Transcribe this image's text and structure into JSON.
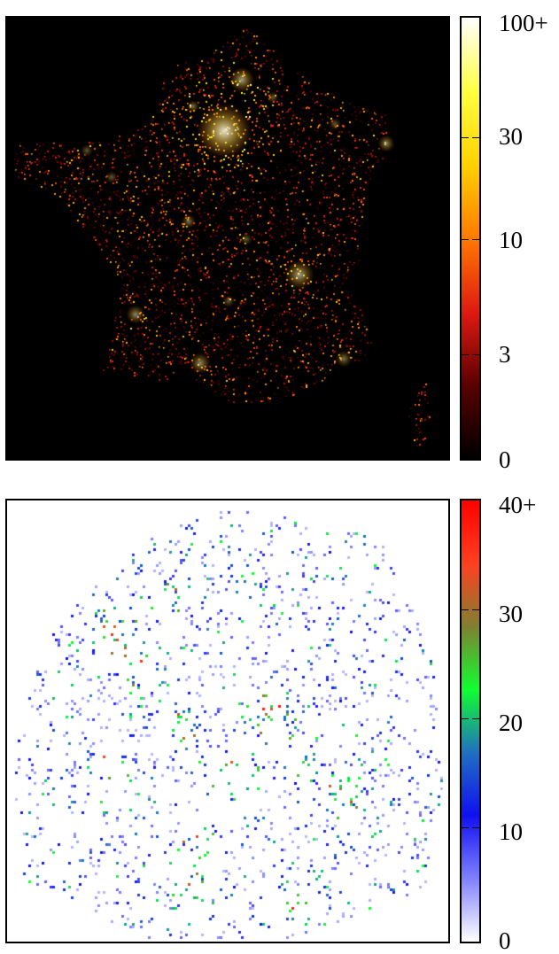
{
  "chart_data": [
    {
      "type": "heatmap",
      "title": "",
      "xlabel": "",
      "ylabel": "",
      "subject": "density map of France (bright city clusters, Corsica at lower right)",
      "background": "#000000",
      "colorbar": {
        "scale": "log",
        "range": [
          0,
          100
        ],
        "tick_labels": [
          "100+",
          "30",
          "10",
          "3",
          "0"
        ],
        "tick_values": [
          100,
          30,
          10,
          3,
          0
        ],
        "colormap": [
          "#000000",
          "#5a0000",
          "#e01a12",
          "#ff7a00",
          "#ffd200",
          "#ffff40",
          "#ffffff"
        ]
      }
    },
    {
      "type": "heatmap",
      "title": "",
      "xlabel": "",
      "ylabel": "",
      "subject": "zoomed scatter density of points (urban area detail)",
      "background": "#ffffff",
      "colorbar": {
        "scale": "linear",
        "range": [
          0,
          40
        ],
        "tick_labels": [
          "40+",
          "30",
          "20",
          "10",
          "0"
        ],
        "tick_values": [
          40,
          30,
          20,
          10,
          0
        ],
        "colormap": [
          "#ffffff",
          "#8080ff",
          "#1010f0",
          "#2070c0",
          "#10ff30",
          "#808030",
          "#ff4020",
          "#ff0000"
        ]
      }
    }
  ]
}
